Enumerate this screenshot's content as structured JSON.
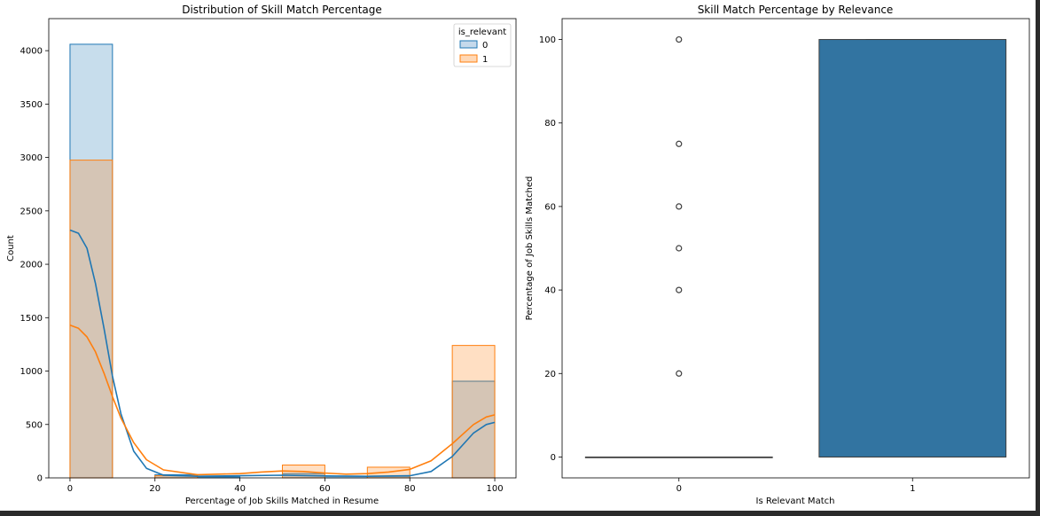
{
  "chart_data": [
    {
      "type": "histogram",
      "title": "Distribution of Skill Match Percentage",
      "xlabel": "Percentage of Job Skills Matched in Resume",
      "ylabel": "Count",
      "xlim": [
        -5,
        105
      ],
      "ylim": [
        0,
        4300
      ],
      "xticks": [
        0,
        20,
        40,
        60,
        80,
        100
      ],
      "yticks": [
        0,
        500,
        1000,
        1500,
        2000,
        2500,
        3000,
        3500,
        4000
      ],
      "legend": {
        "title": "is_relevant",
        "placement": "top-right"
      },
      "bin_edges": [
        0,
        10,
        20,
        30,
        40,
        50,
        60,
        70,
        80,
        90,
        100
      ],
      "series": [
        {
          "name": "0",
          "color": "#1f77b4",
          "counts": [
            4060,
            0,
            30,
            10,
            0,
            40,
            15,
            15,
            0,
            905
          ],
          "kde": [
            [
              0,
              2320
            ],
            [
              2,
              2290
            ],
            [
              4,
              2150
            ],
            [
              6,
              1820
            ],
            [
              8,
              1400
            ],
            [
              10,
              950
            ],
            [
              12,
              600
            ],
            [
              15,
              250
            ],
            [
              18,
              90
            ],
            [
              22,
              25
            ],
            [
              30,
              15
            ],
            [
              40,
              20
            ],
            [
              50,
              25
            ],
            [
              60,
              18
            ],
            [
              70,
              15
            ],
            [
              80,
              20
            ],
            [
              85,
              60
            ],
            [
              90,
              200
            ],
            [
              95,
              420
            ],
            [
              98,
              500
            ],
            [
              100,
              520
            ]
          ]
        },
        {
          "name": "1",
          "color": "#ff7f0e",
          "counts": [
            2975,
            0,
            20,
            0,
            0,
            120,
            0,
            100,
            0,
            1240
          ],
          "kde": [
            [
              0,
              1430
            ],
            [
              2,
              1400
            ],
            [
              4,
              1320
            ],
            [
              6,
              1180
            ],
            [
              8,
              980
            ],
            [
              10,
              760
            ],
            [
              12,
              560
            ],
            [
              15,
              330
            ],
            [
              18,
              170
            ],
            [
              22,
              75
            ],
            [
              30,
              30
            ],
            [
              40,
              40
            ],
            [
              45,
              55
            ],
            [
              50,
              65
            ],
            [
              55,
              60
            ],
            [
              60,
              45
            ],
            [
              65,
              35
            ],
            [
              70,
              40
            ],
            [
              75,
              55
            ],
            [
              80,
              80
            ],
            [
              85,
              160
            ],
            [
              90,
              320
            ],
            [
              95,
              500
            ],
            [
              98,
              570
            ],
            [
              100,
              590
            ]
          ]
        }
      ]
    },
    {
      "type": "box",
      "title": "Skill Match Percentage by Relevance",
      "xlabel": "Is Relevant Match",
      "ylabel": "Percentage of Job Skills Matched",
      "ylim": [
        -5,
        105
      ],
      "yticks": [
        0,
        20,
        40,
        60,
        80,
        100
      ],
      "categories": [
        "0",
        "1"
      ],
      "color": "#3274a1",
      "boxes": [
        {
          "category": "0",
          "q1": 0,
          "median": 0,
          "q3": 0,
          "whisker_low": 0,
          "whisker_high": 0,
          "outliers": [
            20,
            40,
            50,
            60,
            75,
            100
          ]
        },
        {
          "category": "1",
          "q1": 0,
          "median": 0,
          "q3": 100,
          "whisker_low": 0,
          "whisker_high": 100,
          "outliers": []
        }
      ]
    }
  ]
}
